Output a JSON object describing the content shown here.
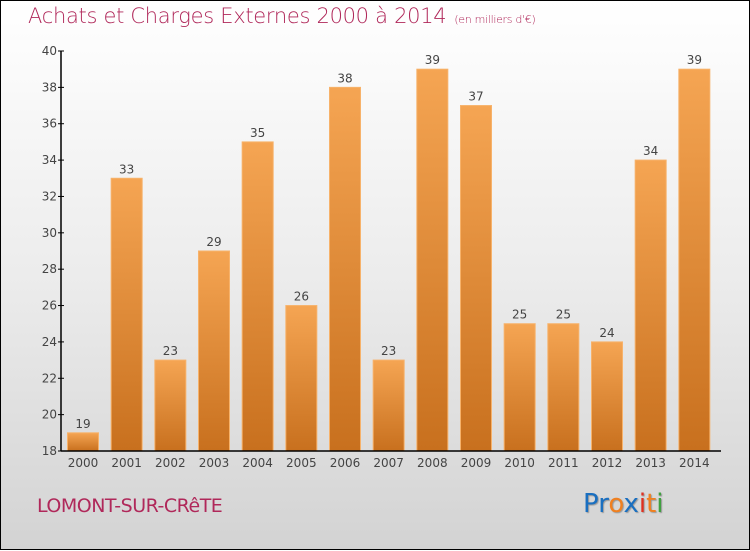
{
  "header": {
    "title": "Achats et Charges Externes 2000 à 2014",
    "subtitle": "(en milliers d'€)"
  },
  "footer": {
    "town": "LOMONT-SUR-CRêTE",
    "logo": [
      "P",
      "r",
      "o",
      "x",
      "i",
      "t",
      "i"
    ],
    "logo_colors": [
      "#1a6fc0",
      "#1a6fc0",
      "#f08020",
      "#1a6fc0",
      "#e03020",
      "#f08020",
      "#40a040"
    ]
  },
  "colors": {
    "bar_top": "#f5a553",
    "bar_bottom": "#c8701e",
    "title": "#b0285a"
  },
  "chart_data": {
    "type": "bar",
    "title": "Achats et Charges Externes 2000 à 2014",
    "subtitle": "(en milliers d'€)",
    "xlabel": "",
    "ylabel": "",
    "categories": [
      "2000",
      "2001",
      "2002",
      "2003",
      "2004",
      "2005",
      "2006",
      "2007",
      "2008",
      "2009",
      "2010",
      "2011",
      "2012",
      "2013",
      "2014"
    ],
    "values": [
      19,
      33,
      23,
      29,
      35,
      26,
      38,
      23,
      39,
      37,
      25,
      25,
      24,
      34,
      39
    ],
    "ylim": [
      18,
      40
    ],
    "yticks": [
      18,
      20,
      22,
      24,
      26,
      28,
      30,
      32,
      34,
      36,
      38,
      40
    ],
    "grid": false,
    "legend": "none"
  }
}
